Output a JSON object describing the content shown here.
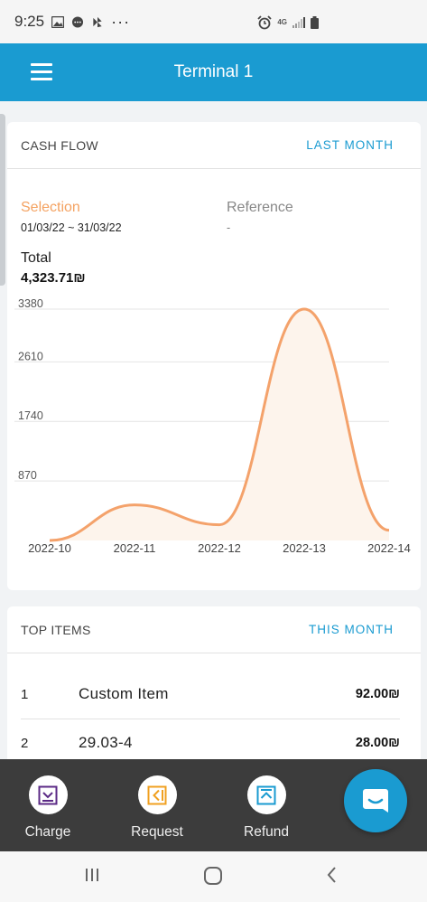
{
  "status_bar": {
    "time": "9:25",
    "dots": "···",
    "net": "4G"
  },
  "header": {
    "title": "Terminal 1"
  },
  "cash_flow": {
    "title": "CASH FLOW",
    "period_link": "LAST MONTH",
    "selection_label": "Selection",
    "selection_range": "01/03/22 ~ 31/03/22",
    "reference_label": "Reference",
    "reference_value": "-",
    "total_label": "Total",
    "total_value": "4,323.71₪"
  },
  "chart_data": {
    "type": "area",
    "x": [
      "2022-10",
      "2022-11",
      "2022-12",
      "2022-13",
      "2022-14"
    ],
    "y": [
      0,
      520,
      230,
      3380,
      150
    ],
    "ytick_values": [
      870,
      1740,
      2610,
      3380
    ],
    "yticks": [
      "870",
      "1740",
      "2610",
      "3380"
    ],
    "ylim": [
      0,
      3380
    ],
    "grid": true,
    "line_color": "#f4a26b",
    "fill_color": "#fdf4ec"
  },
  "top_items": {
    "title": "TOP ITEMS",
    "period_link": "THIS MONTH",
    "items": [
      {
        "rank": "1",
        "name": "Custom Item",
        "price": "92.00₪"
      },
      {
        "rank": "2",
        "name": "29.03-4",
        "price": "28.00₪"
      }
    ]
  },
  "actions": {
    "charge": "Charge",
    "request": "Request",
    "refund": "Refund"
  },
  "colors": {
    "accent": "#1a9bd1",
    "orange": "#f4a261",
    "dark_bar": "#3c3c3c",
    "charge_icon": "#5b2a86",
    "request_icon": "#f0a020",
    "refund_icon": "#1a9bd1"
  }
}
